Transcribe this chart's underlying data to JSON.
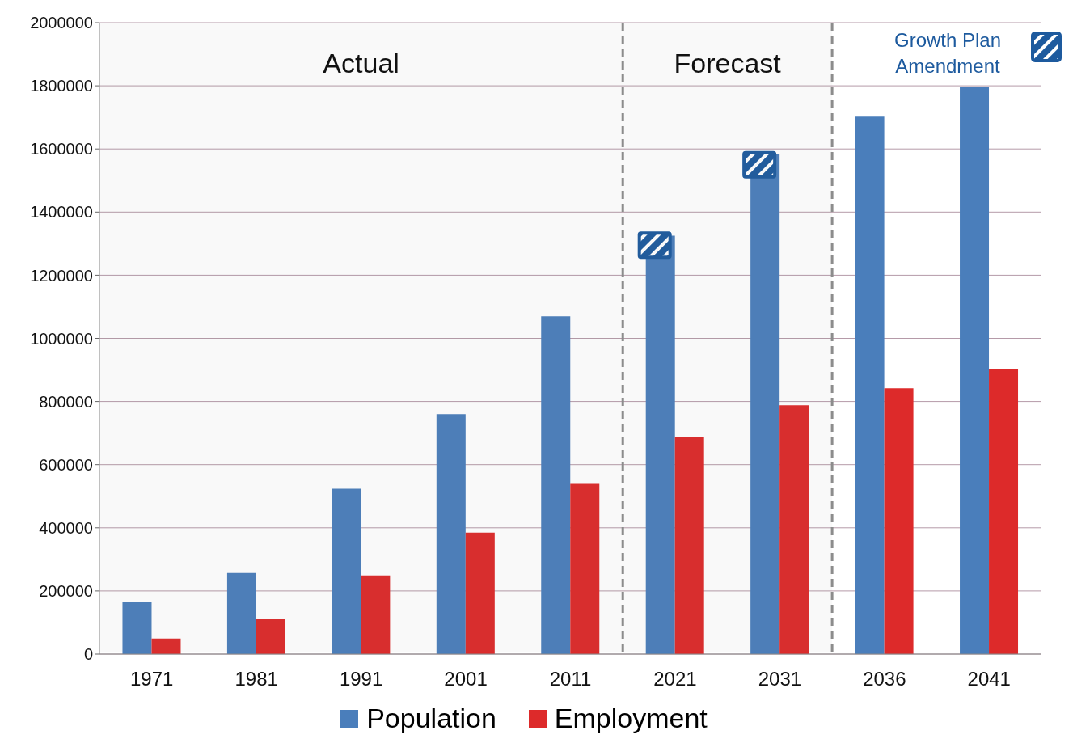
{
  "chart_data": {
    "type": "bar",
    "categories": [
      "1971",
      "1981",
      "1991",
      "2001",
      "2011",
      "2021",
      "2031",
      "2036",
      "2041"
    ],
    "series": [
      {
        "name": "Population",
        "color": "#4a7ebb",
        "values": [
          165000,
          257000,
          524000,
          760000,
          1070000,
          1325000,
          1585000,
          1702000,
          1795000
        ]
      },
      {
        "name": "Employment",
        "color": "#dd2a2a",
        "values": [
          49000,
          110000,
          249000,
          385000,
          539000,
          686000,
          788000,
          842000,
          904000
        ]
      },
      {
        "name": "Growth Plan Amendment",
        "type": "scatter",
        "marker": "square",
        "color": "#1d5a9e",
        "values": [
          null,
          null,
          null,
          null,
          null,
          1295000,
          1550000,
          null,
          null
        ]
      }
    ],
    "ylim": [
      0,
      2000000
    ],
    "yticks": [
      0,
      200000,
      400000,
      600000,
      800000,
      1000000,
      1200000,
      1400000,
      1600000,
      1800000,
      2000000
    ],
    "grid": "y",
    "legend": "bottom",
    "bands": [
      {
        "axis": "x",
        "from": "1971",
        "to": "2011",
        "label": "Actual",
        "color": "#8c8c8c"
      },
      {
        "axis": "x",
        "from": "2021",
        "to": "2031",
        "label": "Forecast",
        "color": "#8c8c8c"
      }
    ]
  }
}
